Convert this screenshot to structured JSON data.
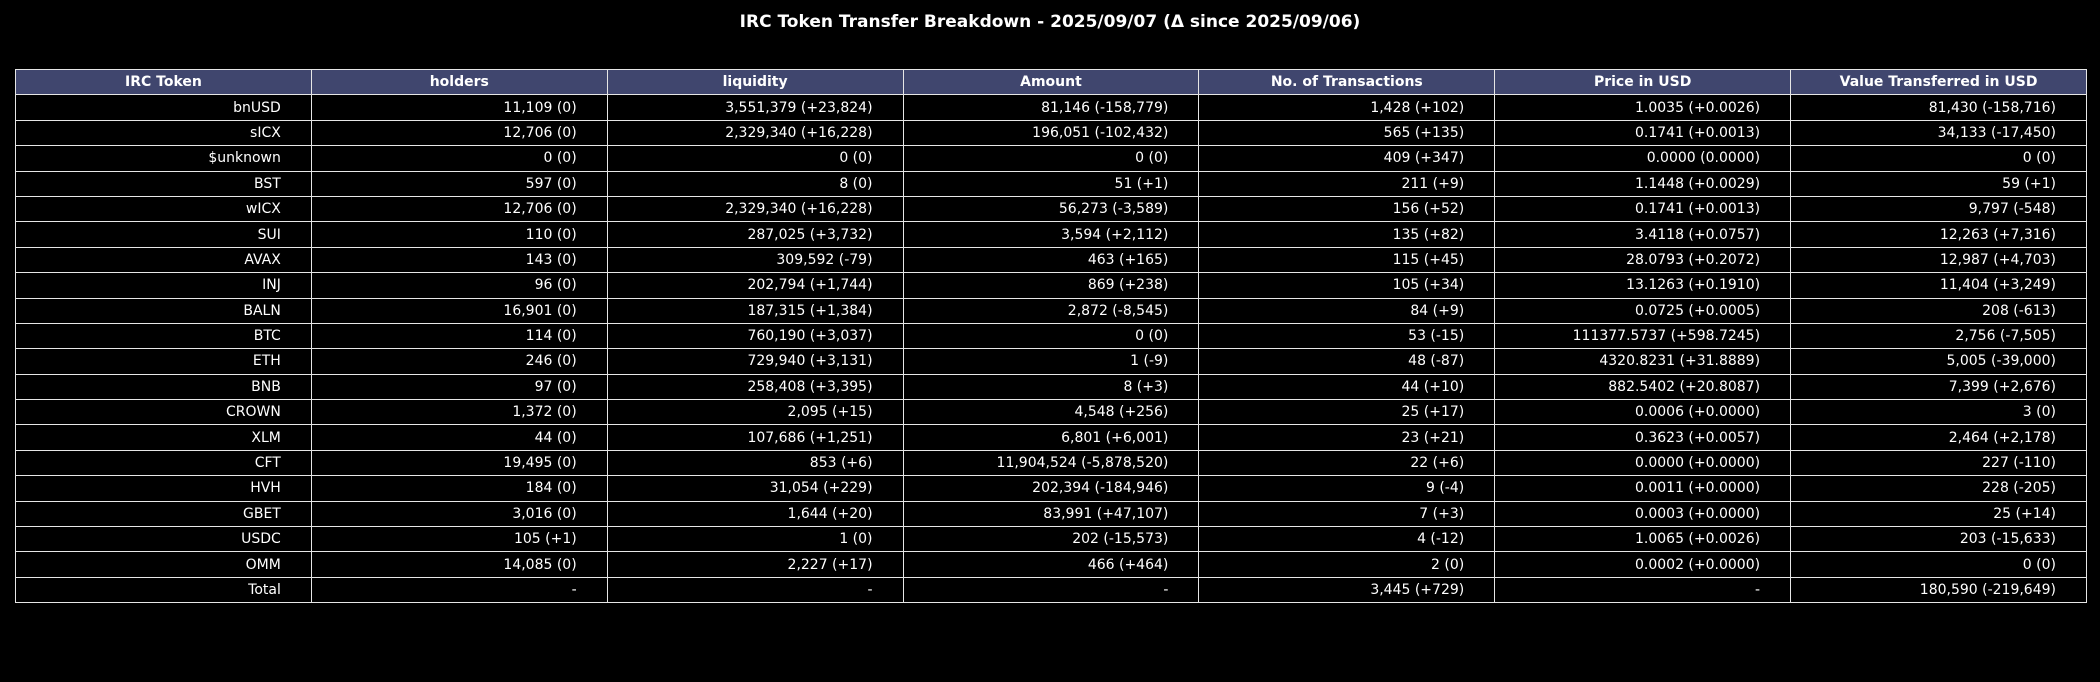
{
  "chart_data": {
    "type": "table",
    "title": "IRC Token Transfer Breakdown - 2025/09/07 (Δ since 2025/09/06)",
    "columns": [
      "IRC Token",
      "holders",
      "liquidity",
      "Amount",
      "No. of Transactions",
      "Price in USD",
      "Value Transferred in USD"
    ],
    "rows": [
      [
        "bnUSD",
        "11,109 (0)",
        "3,551,379 (+23,824)",
        "81,146 (-158,779)",
        "1,428 (+102)",
        "1.0035 (+0.0026)",
        "81,430 (-158,716)"
      ],
      [
        "sICX",
        "12,706 (0)",
        "2,329,340 (+16,228)",
        "196,051 (-102,432)",
        "565 (+135)",
        "0.1741 (+0.0013)",
        "34,133 (-17,450)"
      ],
      [
        "$unknown",
        "0 (0)",
        "0 (0)",
        "0 (0)",
        "409 (+347)",
        "0.0000 (0.0000)",
        "0 (0)"
      ],
      [
        "BST",
        "597 (0)",
        "8 (0)",
        "51 (+1)",
        "211 (+9)",
        "1.1448 (+0.0029)",
        "59 (+1)"
      ],
      [
        "wICX",
        "12,706 (0)",
        "2,329,340 (+16,228)",
        "56,273 (-3,589)",
        "156 (+52)",
        "0.1741 (+0.0013)",
        "9,797 (-548)"
      ],
      [
        "SUI",
        "110 (0)",
        "287,025 (+3,732)",
        "3,594 (+2,112)",
        "135 (+82)",
        "3.4118 (+0.0757)",
        "12,263 (+7,316)"
      ],
      [
        "AVAX",
        "143 (0)",
        "309,592 (-79)",
        "463 (+165)",
        "115 (+45)",
        "28.0793 (+0.2072)",
        "12,987 (+4,703)"
      ],
      [
        "INJ",
        "96 (0)",
        "202,794 (+1,744)",
        "869 (+238)",
        "105 (+34)",
        "13.1263 (+0.1910)",
        "11,404 (+3,249)"
      ],
      [
        "BALN",
        "16,901 (0)",
        "187,315 (+1,384)",
        "2,872 (-8,545)",
        "84 (+9)",
        "0.0725 (+0.0005)",
        "208 (-613)"
      ],
      [
        "BTC",
        "114 (0)",
        "760,190 (+3,037)",
        "0 (0)",
        "53 (-15)",
        "111377.5737 (+598.7245)",
        "2,756 (-7,505)"
      ],
      [
        "ETH",
        "246 (0)",
        "729,940 (+3,131)",
        "1 (-9)",
        "48 (-87)",
        "4320.8231 (+31.8889)",
        "5,005 (-39,000)"
      ],
      [
        "BNB",
        "97 (0)",
        "258,408 (+3,395)",
        "8 (+3)",
        "44 (+10)",
        "882.5402 (+20.8087)",
        "7,399 (+2,676)"
      ],
      [
        "CROWN",
        "1,372 (0)",
        "2,095 (+15)",
        "4,548 (+256)",
        "25 (+17)",
        "0.0006 (+0.0000)",
        "3 (0)"
      ],
      [
        "XLM",
        "44 (0)",
        "107,686 (+1,251)",
        "6,801 (+6,001)",
        "23 (+21)",
        "0.3623 (+0.0057)",
        "2,464 (+2,178)"
      ],
      [
        "CFT",
        "19,495 (0)",
        "853 (+6)",
        "11,904,524 (-5,878,520)",
        "22 (+6)",
        "0.0000 (+0.0000)",
        "227 (-110)"
      ],
      [
        "HVH",
        "184 (0)",
        "31,054 (+229)",
        "202,394 (-184,946)",
        "9 (-4)",
        "0.0011 (+0.0000)",
        "228 (-205)"
      ],
      [
        "GBET",
        "3,016 (0)",
        "1,644 (+20)",
        "83,991 (+47,107)",
        "7 (+3)",
        "0.0003 (+0.0000)",
        "25 (+14)"
      ],
      [
        "USDC",
        "105 (+1)",
        "1 (0)",
        "202 (-15,573)",
        "4 (-12)",
        "1.0065 (+0.0026)",
        "203 (-15,633)"
      ],
      [
        "OMM",
        "14,085 (0)",
        "2,227 (+17)",
        "466 (+464)",
        "2 (0)",
        "0.0002 (+0.0000)",
        "0 (0)"
      ],
      [
        "Total",
        "-",
        "-",
        "-",
        "3,445 (+729)",
        "-",
        "180,590 (-219,649)"
      ]
    ]
  },
  "colors": {
    "background": "#000000",
    "header_fill": "#40466e",
    "cell_fill": "#000000",
    "grid_line": "#e6e6e6",
    "text": "#ffffff"
  }
}
